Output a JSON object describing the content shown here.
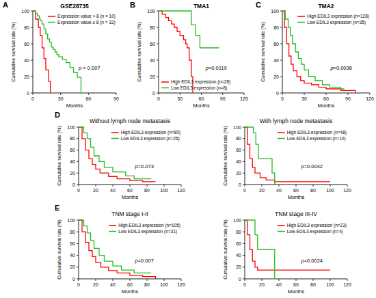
{
  "chart_data": [
    {
      "type": "line",
      "panel": "A",
      "title": "GSE28735",
      "x_label": "Months",
      "y_label": "Cumulative survival rate (%)",
      "annotation": "p = 0.007",
      "legend": "upper right",
      "line_style": "step",
      "xlim": [
        0,
        90
      ],
      "xticks": [
        0,
        30,
        60,
        90
      ],
      "ylim": [
        0,
        100
      ],
      "yticks": [
        0,
        20,
        40,
        60,
        80,
        100
      ],
      "series": [
        {
          "name": "Expression value > 8 (n = 10)",
          "color": "#ff0000",
          "x": [
            0,
            3,
            6,
            8,
            10,
            12,
            14,
            17,
            19
          ],
          "values": [
            100,
            90,
            80,
            70,
            55,
            42,
            28,
            14,
            0
          ]
        },
        {
          "name": "Expression value ≤ 8 (n = 32)",
          "color": "#22bb22",
          "x": [
            0,
            3,
            5,
            7,
            8,
            10,
            12,
            14,
            16,
            18,
            20,
            22,
            24,
            26,
            28,
            32,
            36,
            40,
            44,
            48,
            52
          ],
          "values": [
            100,
            97,
            94,
            91,
            88,
            84,
            78,
            72,
            66,
            62,
            56,
            53,
            50,
            47,
            44,
            41,
            37,
            31,
            25,
            19,
            0
          ]
        }
      ]
    },
    {
      "type": "line",
      "panel": "B",
      "title": "TMA1",
      "x_label": "Months",
      "y_label": "Cumulative survival rate (%)",
      "annotation": "p=0.0119",
      "legend": "lower left",
      "line_style": "step",
      "xlim": [
        0,
        120
      ],
      "xticks": [
        0,
        30,
        60,
        90,
        120
      ],
      "ylim": [
        0,
        100
      ],
      "yticks": [
        0,
        20,
        40,
        60,
        80,
        100
      ],
      "series": [
        {
          "name": "High EDIL3 expression (n=28)",
          "color": "#ff0000",
          "x": [
            0,
            5,
            10,
            14,
            18,
            22,
            26,
            30,
            35,
            38,
            40,
            43,
            46,
            48
          ],
          "values": [
            100,
            96,
            92,
            88,
            84,
            80,
            75,
            70,
            65,
            60,
            55,
            40,
            20,
            0
          ]
        },
        {
          "name": "Low EDIL3 expression (n=8)",
          "color": "#22bb22",
          "x": [
            0,
            46,
            52,
            58,
            85
          ],
          "values": [
            100,
            83,
            70,
            55,
            55
          ]
        }
      ]
    },
    {
      "type": "line",
      "panel": "C",
      "title": "TMA2",
      "x_label": "Months",
      "y_label": "Cumulative survival rate (%)",
      "annotation": "p=0.0036",
      "legend": "upper right",
      "line_style": "step",
      "xlim": [
        0,
        120
      ],
      "xticks": [
        0,
        30,
        60,
        90,
        120
      ],
      "ylim": [
        0,
        100
      ],
      "yticks": [
        0,
        20,
        40,
        60,
        80,
        100
      ],
      "series": [
        {
          "name": "High EDIL3 expression (n=128)",
          "color": "#ff0000",
          "x": [
            0,
            3,
            6,
            9,
            12,
            15,
            20,
            25,
            30,
            40,
            50,
            60,
            80,
            100
          ],
          "values": [
            100,
            80,
            60,
            45,
            35,
            27,
            20,
            15,
            12,
            10,
            7,
            5,
            3,
            0
          ]
        },
        {
          "name": "Low EDIL3 expression (n=35)",
          "color": "#22bb22",
          "x": [
            0,
            4,
            8,
            11,
            14,
            18,
            22,
            26,
            30,
            36,
            45,
            55,
            65,
            80,
            85
          ],
          "values": [
            100,
            90,
            80,
            70,
            60,
            50,
            42,
            35,
            28,
            20,
            15,
            10,
            7,
            5,
            5
          ]
        }
      ]
    },
    {
      "type": "line",
      "panel": "D",
      "title": "Without lymph node metastasis",
      "x_label": "Months",
      "y_label": "Cumulative survival rate (%)",
      "annotation": "p=0.073",
      "legend": "upper right",
      "line_style": "step",
      "xlim": [
        0,
        120
      ],
      "xticks": [
        0,
        20,
        40,
        60,
        80,
        100,
        120
      ],
      "ylim": [
        0,
        100
      ],
      "yticks": [
        0,
        20,
        40,
        60,
        80,
        100
      ],
      "series": [
        {
          "name": "High EDIL3 expression (n=80)",
          "color": "#ff0000",
          "x": [
            0,
            4,
            8,
            12,
            16,
            20,
            25,
            35,
            45,
            60,
            75,
            90
          ],
          "values": [
            100,
            80,
            60,
            45,
            35,
            27,
            20,
            14,
            10,
            7,
            5,
            5
          ]
        },
        {
          "name": "Low EDIL3 expression (n=25)",
          "color": "#22bb22",
          "x": [
            0,
            6,
            10,
            14,
            18,
            24,
            30,
            40,
            55,
            65,
            85
          ],
          "values": [
            100,
            90,
            80,
            65,
            50,
            40,
            30,
            22,
            15,
            10,
            10
          ]
        }
      ]
    },
    {
      "type": "line",
      "title": "With lymph node metastasis",
      "x_label": "Months",
      "y_label": "Cumulative survival rate (%)",
      "annotation": "p=0.0042",
      "legend": "upper right",
      "line_style": "step",
      "xlim": [
        0,
        120
      ],
      "xticks": [
        0,
        20,
        40,
        60,
        80,
        100,
        120
      ],
      "ylim": [
        0,
        100
      ],
      "yticks": [
        0,
        20,
        40,
        60,
        80,
        100
      ],
      "series": [
        {
          "name": "High EDIL3 expression (n=48)",
          "color": "#ff0000",
          "x": [
            0,
            3,
            6,
            9,
            12,
            18,
            25,
            35,
            100
          ],
          "values": [
            100,
            70,
            45,
            30,
            20,
            12,
            8,
            5,
            5
          ]
        },
        {
          "name": "Low EDIL3 expression (n=10)",
          "color": "#22bb22",
          "x": [
            0,
            10,
            13,
            16,
            32,
            35
          ],
          "values": [
            100,
            90,
            70,
            45,
            20,
            0
          ]
        }
      ]
    },
    {
      "type": "line",
      "panel": "E",
      "title": "TNM stage  I-II",
      "x_label": "Months",
      "y_label": "Cumulative survival rate (%)",
      "annotation": "p=0.007",
      "legend": "upper right",
      "line_style": "step",
      "xlim": [
        0,
        120
      ],
      "xticks": [
        0,
        20,
        40,
        60,
        80,
        100,
        120
      ],
      "ylim": [
        0,
        100
      ],
      "yticks": [
        0,
        20,
        40,
        60,
        80,
        100
      ],
      "series": [
        {
          "name": "High EDIL3 expression (n=105)",
          "color": "#ff0000",
          "x": [
            0,
            4,
            8,
            12,
            16,
            20,
            26,
            35,
            45,
            60,
            75,
            90
          ],
          "values": [
            100,
            80,
            62,
            48,
            38,
            28,
            20,
            14,
            10,
            6,
            4,
            0
          ]
        },
        {
          "name": "Low EDIL3 expression (n=31)",
          "color": "#22bb22",
          "x": [
            0,
            6,
            10,
            14,
            18,
            24,
            30,
            40,
            50,
            65,
            85
          ],
          "values": [
            100,
            90,
            78,
            65,
            52,
            40,
            30,
            22,
            15,
            10,
            10
          ]
        }
      ]
    },
    {
      "type": "line",
      "title": "TNM stage  III-IV",
      "x_label": "Months",
      "y_label": "Cumulative survival rate (%)",
      "annotation": "p=0.0024",
      "legend": "upper right",
      "line_style": "step",
      "xlim": [
        0,
        120
      ],
      "xticks": [
        0,
        20,
        40,
        60,
        80,
        100,
        120
      ],
      "ylim": [
        0,
        100
      ],
      "yticks": [
        0,
        20,
        40,
        60,
        80,
        100
      ],
      "series": [
        {
          "name": "High EDIL3 expression (n=23)",
          "color": "#ff0000",
          "x": [
            0,
            3,
            6,
            9,
            12,
            15,
            100
          ],
          "values": [
            100,
            75,
            50,
            30,
            20,
            15,
            15
          ]
        },
        {
          "name": "Low EDIL3 expression (n=4)",
          "color": "#22bb22",
          "x": [
            0,
            12,
            15,
            35
          ],
          "values": [
            100,
            75,
            50,
            0
          ]
        }
      ]
    }
  ]
}
